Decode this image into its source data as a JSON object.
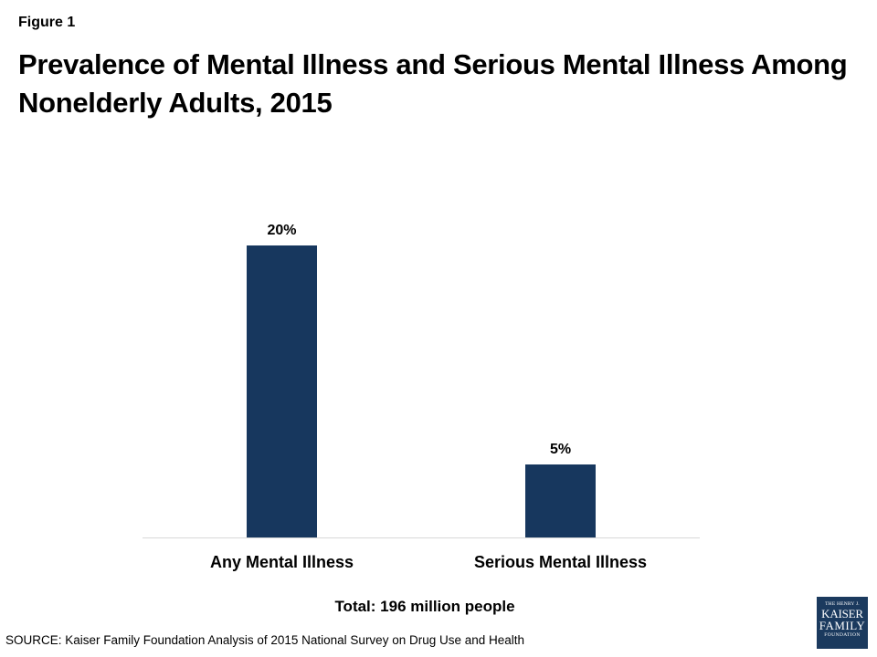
{
  "figure_label": "Figure 1",
  "title": "Prevalence of Mental Illness and Serious Mental Illness Among Nonelderly Adults, 2015",
  "footnote": "Total:  196 million people",
  "source": "SOURCE: Kaiser Family Foundation Analysis of 2015 National Survey on Drug Use and Health",
  "logo": {
    "line1": "THE HENRY J.",
    "line2": "KAISER",
    "line3": "FAMILY",
    "line4": "FOUNDATION"
  },
  "chart_data": {
    "type": "bar",
    "categories": [
      "Any Mental Illness",
      "Serious Mental Illness"
    ],
    "values": [
      20,
      5
    ],
    "data_labels": [
      "20%",
      "5%"
    ],
    "ylim": [
      0,
      25
    ],
    "grid": false,
    "color": "#17375e"
  }
}
